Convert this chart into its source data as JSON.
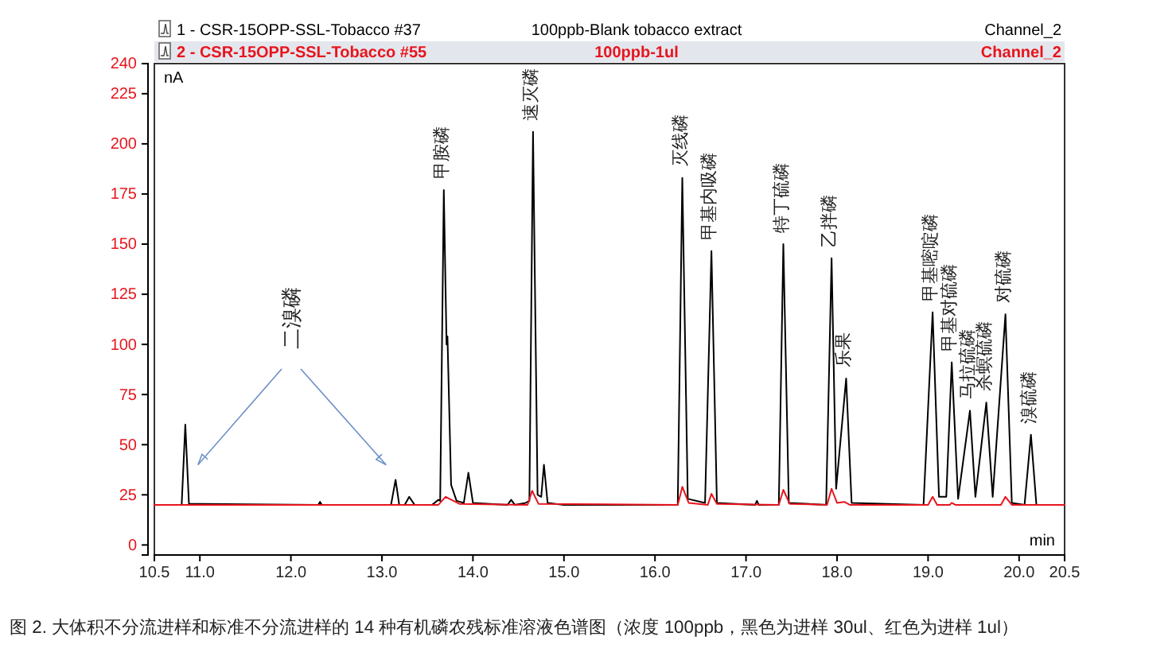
{
  "chart_data": {
    "type": "line",
    "title": "图 2. 大体积不分流进样和标准不分流进样的 14 种有机磷农残标准溶液色谱图（浓度 100ppb，黑色为进样 30ul、红色为进样 1ul）",
    "xlabel": "min",
    "ylabel": "nA",
    "xlim": [
      10.5,
      20.5
    ],
    "xticks": [
      10.5,
      {
        "value": 11,
        "label": "11.0"
      },
      {
        "value": 12,
        "label": "12.0"
      },
      {
        "value": 13,
        "label": "13.0"
      },
      {
        "value": 14,
        "label": "14.0"
      },
      {
        "value": 15,
        "label": "15.0"
      },
      {
        "value": 16,
        "label": "16.0"
      },
      {
        "value": 17,
        "label": "17.0"
      },
      {
        "value": 18,
        "label": "18.0"
      },
      {
        "value": 19,
        "label": "19.0"
      },
      {
        "value": 20,
        "label": "20.0"
      },
      20.5
    ],
    "ylim": [
      -5,
      240
    ],
    "yticks": [
      0,
      25,
      50,
      75,
      100,
      125,
      150,
      175,
      200,
      225,
      240
    ],
    "grid": false,
    "legend": "top",
    "line_style": "solid",
    "marker": "none",
    "series": [
      {
        "name": "1 - CSR-15OPP-SSL-Tobacco #37",
        "color": "#000000",
        "x": [
          10.5,
          10.8,
          10.84,
          10.88,
          12.3,
          12.32,
          12.34,
          13.1,
          13.15,
          13.19,
          13.25,
          13.3,
          13.36,
          13.55,
          13.62,
          13.64,
          13.68,
          13.71,
          13.72,
          13.76,
          13.82,
          13.9,
          13.95,
          14.0,
          14.38,
          14.42,
          14.46,
          14.58,
          14.62,
          14.66,
          14.71,
          14.75,
          14.78,
          14.82,
          15.0,
          16.25,
          16.3,
          16.36,
          16.55,
          16.62,
          16.68,
          17.1,
          17.12,
          17.14,
          17.36,
          17.41,
          17.47,
          17.88,
          17.94,
          17.99,
          18.1,
          18.16,
          18.95,
          19.05,
          19.12,
          19.2,
          19.26,
          19.33,
          19.46,
          19.52,
          19.64,
          19.71,
          19.85,
          19.92,
          20.06,
          20.13,
          20.19,
          20.5
        ],
        "values": [
          20,
          20,
          60,
          20.5,
          20,
          21.5,
          20,
          20,
          32.5,
          20,
          20,
          24,
          20,
          20,
          22.5,
          22,
          177,
          100,
          104,
          30,
          22,
          21,
          36,
          21,
          20,
          22.5,
          20,
          21,
          22,
          206,
          25,
          24,
          40,
          21,
          20,
          20,
          183,
          23,
          21,
          146.5,
          21,
          20,
          22,
          20,
          20,
          150,
          21,
          20,
          143,
          28,
          83,
          21,
          20,
          116,
          24,
          24,
          91,
          23,
          67,
          24,
          71,
          24,
          115,
          21,
          20,
          55,
          20,
          20
        ]
      },
      {
        "name": "2 - CSR-15OPP-SSL-Tobacco #55",
        "color": "#e8141c",
        "x": [
          10.5,
          13.62,
          13.7,
          13.85,
          14.6,
          14.65,
          14.72,
          16.25,
          16.3,
          16.37,
          16.58,
          16.62,
          16.68,
          17.36,
          17.41,
          17.48,
          17.89,
          17.94,
          18.0,
          18.08,
          18.14,
          19.0,
          19.05,
          19.1,
          19.24,
          19.26,
          19.3,
          19.8,
          19.85,
          19.92,
          20.5
        ],
        "values": [
          20,
          20,
          24,
          20.5,
          20,
          27,
          20.5,
          20,
          29,
          21,
          20,
          25.5,
          20.5,
          20,
          27.5,
          20.5,
          20,
          28,
          21,
          21.5,
          20,
          20,
          24,
          20,
          20,
          21,
          20,
          20,
          24,
          20,
          20
        ]
      }
    ],
    "annotations": [
      "二溴磷",
      {
        "text": "甲胺磷",
        "x": 13.68,
        "y": 177
      },
      {
        "text": "速灭磷",
        "x": 14.66,
        "y": 206
      },
      {
        "text": "灭线磷",
        "x": 16.3,
        "y": 183
      },
      {
        "text": "甲基内吸磷",
        "x": 16.62,
        "y": 146.5
      },
      {
        "text": "特丁硫磷",
        "x": 17.41,
        "y": 150
      },
      {
        "text": "乙拌磷",
        "x": 17.94,
        "y": 143
      },
      {
        "text": "乐果",
        "x": 18.1,
        "y": 83
      },
      {
        "text": "甲基嘧啶磷",
        "x": 19.05,
        "y": 116
      },
      {
        "text": "甲基对硫磷",
        "x": 19.26,
        "y": 91
      },
      {
        "text": "马拉硫磷",
        "x": 19.46,
        "y": 67
      },
      {
        "text": "杀螟硫磷",
        "x": 19.64,
        "y": 71
      },
      {
        "text": "对硫磷",
        "x": 19.85,
        "y": 115
      },
      {
        "text": "溴硫磷",
        "x": 20.13,
        "y": 55
      },
      "100ppb-Blank tobacco extract",
      "Channel_2",
      "100ppb-1ul",
      "Channel_2"
    ]
  }
}
